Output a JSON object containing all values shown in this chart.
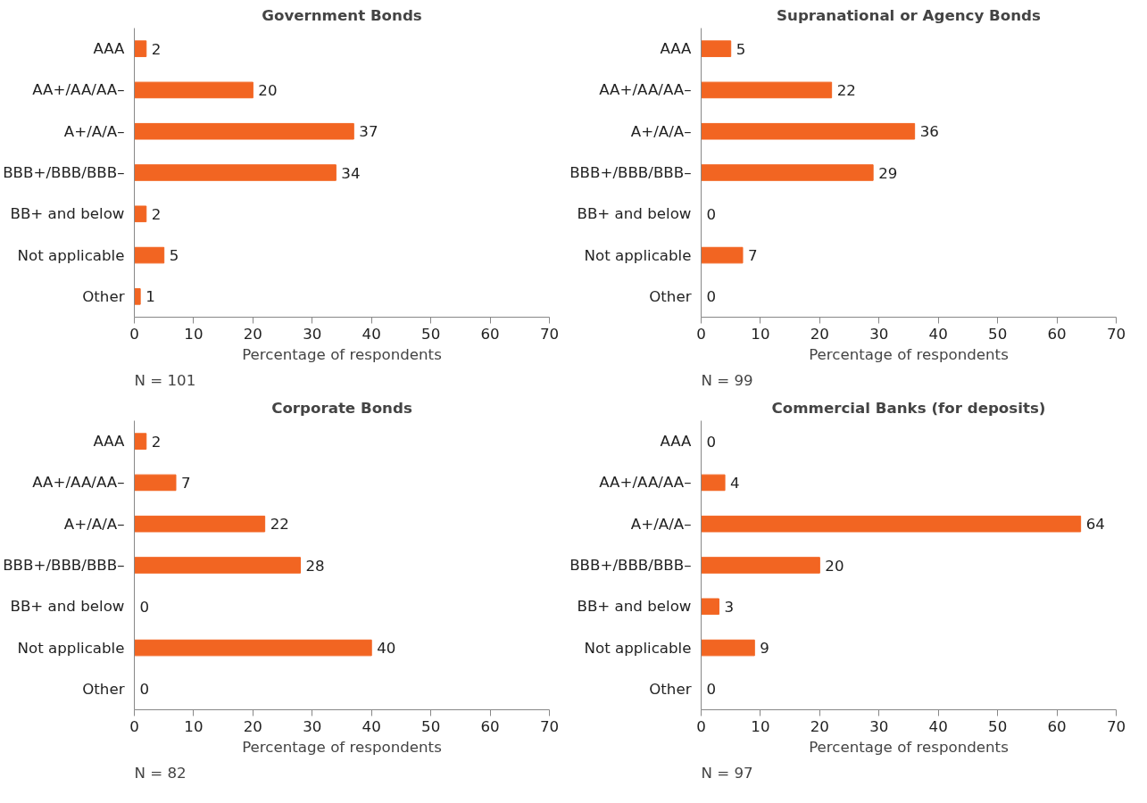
{
  "chart_data": [
    {
      "type": "bar",
      "orientation": "horizontal",
      "title": "Government Bonds",
      "categories": [
        "AAA",
        "AA+/AA/AA–",
        "A+/A/A–",
        "BBB+/BBB/BBB–",
        "BB+ and below",
        "Not applicable",
        "Other"
      ],
      "values": [
        2,
        20,
        37,
        34,
        2,
        5,
        1
      ],
      "color": "#f26522",
      "xlim": [
        0,
        70
      ],
      "xticks": [
        0,
        10,
        20,
        30,
        40,
        50,
        60,
        70
      ],
      "xlabel": "Percentage of respondents",
      "annotations": [
        "N = 101"
      ],
      "data_labels": true,
      "grid": false
    },
    {
      "type": "bar",
      "orientation": "horizontal",
      "title": "Supranational or Agency Bonds",
      "categories": [
        "AAA",
        "AA+/AA/AA–",
        "A+/A/A–",
        "BBB+/BBB/BBB–",
        "BB+ and below",
        "Not applicable",
        "Other"
      ],
      "values": [
        5,
        22,
        36,
        29,
        0,
        7,
        0
      ],
      "color": "#f26522",
      "xlim": [
        0,
        70
      ],
      "xticks": [
        0,
        10,
        20,
        30,
        40,
        50,
        60,
        70
      ],
      "xlabel": "Percentage of respondents",
      "annotations": [
        "N = 99"
      ],
      "data_labels": true,
      "grid": false
    },
    {
      "type": "bar",
      "orientation": "horizontal",
      "title": "Corporate Bonds",
      "categories": [
        "AAA",
        "AA+/AA/AA–",
        "A+/A/A–",
        "BBB+/BBB/BBB–",
        "BB+ and below",
        "Not applicable",
        "Other"
      ],
      "values": [
        2,
        7,
        22,
        28,
        0,
        40,
        0
      ],
      "color": "#f26522",
      "xlim": [
        0,
        70
      ],
      "xticks": [
        0,
        10,
        20,
        30,
        40,
        50,
        60,
        70
      ],
      "xlabel": "Percentage of respondents",
      "annotations": [
        "N = 82"
      ],
      "data_labels": true,
      "grid": false
    },
    {
      "type": "bar",
      "orientation": "horizontal",
      "title": "Commercial Banks (for deposits)",
      "categories": [
        "AAA",
        "AA+/AA/AA–",
        "A+/A/A–",
        "BBB+/BBB/BBB–",
        "BB+ and below",
        "Not applicable",
        "Other"
      ],
      "values": [
        0,
        4,
        64,
        20,
        3,
        9,
        0
      ],
      "color": "#f26522",
      "xlim": [
        0,
        70
      ],
      "xticks": [
        0,
        10,
        20,
        30,
        40,
        50,
        60,
        70
      ],
      "xlabel": "Percentage of respondents",
      "annotations": [
        "N = 97"
      ],
      "data_labels": true,
      "grid": false
    }
  ]
}
